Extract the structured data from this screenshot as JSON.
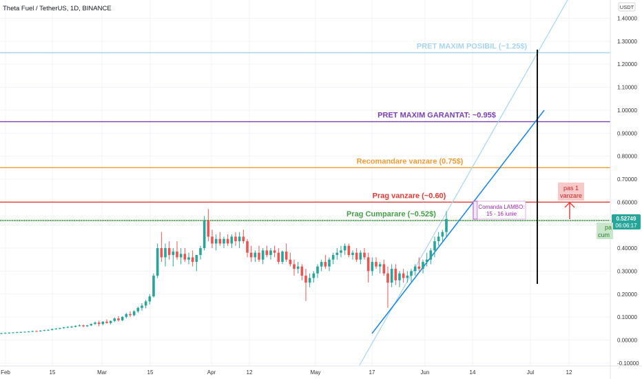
{
  "header": {
    "title": "Theta Fuel / TetherUS, 1D, BINANCE"
  },
  "axis": {
    "currency": "USDT"
  },
  "chart_data": {
    "type": "candlestick",
    "title": "Theta Fuel / TetherUS, 1D, BINANCE",
    "y_ticks": [
      -0.1,
      0.0,
      0.1,
      0.2,
      0.3,
      0.4,
      0.5,
      0.6,
      0.7,
      0.8,
      0.9,
      1.0,
      1.1,
      1.2,
      1.3,
      1.4
    ],
    "y_tick_labels": [
      "-0.10000",
      "0.00000",
      "0.10000",
      "0.20000",
      "0.30000",
      "0.40000",
      "0.50000",
      "0.60000",
      "0.70000",
      "0.80000",
      "0.90000",
      "1.00000",
      "1.10000",
      "1.20000",
      "1.30000",
      "1.40000"
    ],
    "ylim": [
      -0.1,
      1.4
    ],
    "x_labels": [
      "Feb",
      "15",
      "Mar",
      "15",
      "Apr",
      "12",
      "May",
      "17",
      "Jun",
      "14",
      "Jul",
      "12"
    ],
    "horizontal_levels": [
      {
        "label": "PRET MAXIM POSIBIL (~1.25$)",
        "value": 1.25,
        "color": "#a8d4f0"
      },
      {
        "label": "PRET MAXIM GARANTAT: ~0.95$",
        "value": 0.95,
        "color": "#7b3fb5"
      },
      {
        "label": "Recomandare vanzare (0.75$)",
        "value": 0.75,
        "color": "#f39c34"
      },
      {
        "label": "Prag vanzare (~0.60)",
        "value": 0.6,
        "color": "#e53935"
      },
      {
        "label": "Prag Cumparare (~0.52$)",
        "value": 0.52,
        "color": "#43a047"
      }
    ],
    "annotation_box": [
      "Comanda LAMBO:",
      "15 - 16 iunie"
    ],
    "sell_step": [
      "pas 1",
      "vanzare"
    ],
    "price_tag": {
      "price": "0.52749",
      "countdown": "06:06:17"
    },
    "buy_step_partial": [
      "pa",
      "cum"
    ],
    "candles": [
      [
        0.028,
        0.032,
        0.026,
        0.03
      ],
      [
        0.03,
        0.033,
        0.028,
        0.031
      ],
      [
        0.031,
        0.034,
        0.029,
        0.032
      ],
      [
        0.032,
        0.035,
        0.03,
        0.033
      ],
      [
        0.033,
        0.036,
        0.031,
        0.034
      ],
      [
        0.034,
        0.037,
        0.032,
        0.035
      ],
      [
        0.035,
        0.038,
        0.033,
        0.036
      ],
      [
        0.036,
        0.039,
        0.034,
        0.037
      ],
      [
        0.037,
        0.041,
        0.035,
        0.039
      ],
      [
        0.039,
        0.042,
        0.036,
        0.038
      ],
      [
        0.038,
        0.043,
        0.036,
        0.041
      ],
      [
        0.041,
        0.045,
        0.039,
        0.043
      ],
      [
        0.043,
        0.047,
        0.04,
        0.044
      ],
      [
        0.044,
        0.05,
        0.042,
        0.048
      ],
      [
        0.048,
        0.052,
        0.045,
        0.05
      ],
      [
        0.05,
        0.054,
        0.047,
        0.052
      ],
      [
        0.052,
        0.057,
        0.049,
        0.055
      ],
      [
        0.055,
        0.06,
        0.052,
        0.057
      ],
      [
        0.057,
        0.062,
        0.053,
        0.058
      ],
      [
        0.058,
        0.064,
        0.055,
        0.062
      ],
      [
        0.062,
        0.068,
        0.058,
        0.064
      ],
      [
        0.064,
        0.067,
        0.056,
        0.06
      ],
      [
        0.06,
        0.066,
        0.057,
        0.064
      ],
      [
        0.064,
        0.072,
        0.061,
        0.07
      ],
      [
        0.07,
        0.08,
        0.066,
        0.076
      ],
      [
        0.076,
        0.084,
        0.06,
        0.07
      ],
      [
        0.07,
        0.082,
        0.064,
        0.08
      ],
      [
        0.08,
        0.09,
        0.072,
        0.074
      ],
      [
        0.074,
        0.085,
        0.068,
        0.083
      ],
      [
        0.083,
        0.098,
        0.078,
        0.094
      ],
      [
        0.094,
        0.104,
        0.08,
        0.086
      ],
      [
        0.086,
        0.104,
        0.082,
        0.101
      ],
      [
        0.101,
        0.118,
        0.094,
        0.113
      ],
      [
        0.113,
        0.125,
        0.1,
        0.108
      ],
      [
        0.108,
        0.13,
        0.103,
        0.125
      ],
      [
        0.125,
        0.145,
        0.118,
        0.14
      ],
      [
        0.14,
        0.16,
        0.128,
        0.15
      ],
      [
        0.15,
        0.175,
        0.138,
        0.168
      ],
      [
        0.168,
        0.2,
        0.155,
        0.19
      ],
      [
        0.19,
        0.29,
        0.185,
        0.28
      ],
      [
        0.28,
        0.42,
        0.27,
        0.4
      ],
      [
        0.4,
        0.47,
        0.34,
        0.36
      ],
      [
        0.36,
        0.42,
        0.32,
        0.4
      ],
      [
        0.4,
        0.43,
        0.35,
        0.37
      ],
      [
        0.37,
        0.4,
        0.32,
        0.385
      ],
      [
        0.385,
        0.43,
        0.35,
        0.36
      ],
      [
        0.36,
        0.4,
        0.33,
        0.375
      ],
      [
        0.375,
        0.4,
        0.34,
        0.35
      ],
      [
        0.35,
        0.38,
        0.33,
        0.36
      ],
      [
        0.36,
        0.39,
        0.32,
        0.34
      ],
      [
        0.34,
        0.37,
        0.3,
        0.37
      ],
      [
        0.37,
        0.41,
        0.35,
        0.4
      ],
      [
        0.4,
        0.54,
        0.39,
        0.52
      ],
      [
        0.52,
        0.57,
        0.43,
        0.45
      ],
      [
        0.45,
        0.48,
        0.4,
        0.42
      ],
      [
        0.42,
        0.46,
        0.39,
        0.44
      ],
      [
        0.44,
        0.47,
        0.41,
        0.42
      ],
      [
        0.42,
        0.45,
        0.4,
        0.44
      ],
      [
        0.44,
        0.46,
        0.41,
        0.42
      ],
      [
        0.42,
        0.46,
        0.4,
        0.45
      ],
      [
        0.45,
        0.47,
        0.41,
        0.43
      ],
      [
        0.43,
        0.47,
        0.4,
        0.45
      ],
      [
        0.45,
        0.48,
        0.42,
        0.43
      ],
      [
        0.43,
        0.44,
        0.36,
        0.38
      ],
      [
        0.38,
        0.41,
        0.34,
        0.36
      ],
      [
        0.36,
        0.39,
        0.34,
        0.38
      ],
      [
        0.38,
        0.41,
        0.34,
        0.35
      ],
      [
        0.35,
        0.4,
        0.33,
        0.39
      ],
      [
        0.39,
        0.41,
        0.36,
        0.37
      ],
      [
        0.37,
        0.4,
        0.35,
        0.39
      ],
      [
        0.39,
        0.41,
        0.36,
        0.38
      ],
      [
        0.38,
        0.4,
        0.33,
        0.34
      ],
      [
        0.34,
        0.39,
        0.33,
        0.385
      ],
      [
        0.385,
        0.42,
        0.34,
        0.35
      ],
      [
        0.35,
        0.38,
        0.32,
        0.33
      ],
      [
        0.33,
        0.35,
        0.28,
        0.31
      ],
      [
        0.31,
        0.34,
        0.29,
        0.32
      ],
      [
        0.32,
        0.33,
        0.26,
        0.28
      ],
      [
        0.28,
        0.31,
        0.17,
        0.25
      ],
      [
        0.25,
        0.29,
        0.23,
        0.27
      ],
      [
        0.27,
        0.3,
        0.25,
        0.29
      ],
      [
        0.29,
        0.33,
        0.27,
        0.32
      ],
      [
        0.32,
        0.35,
        0.3,
        0.34
      ],
      [
        0.34,
        0.37,
        0.31,
        0.32
      ],
      [
        0.32,
        0.36,
        0.3,
        0.35
      ],
      [
        0.35,
        0.38,
        0.33,
        0.37
      ],
      [
        0.37,
        0.4,
        0.35,
        0.38
      ],
      [
        0.38,
        0.41,
        0.36,
        0.39
      ],
      [
        0.39,
        0.42,
        0.37,
        0.41
      ],
      [
        0.41,
        0.42,
        0.36,
        0.37
      ],
      [
        0.37,
        0.39,
        0.35,
        0.38
      ],
      [
        0.38,
        0.4,
        0.34,
        0.35
      ],
      [
        0.35,
        0.39,
        0.33,
        0.38
      ],
      [
        0.38,
        0.4,
        0.35,
        0.36
      ],
      [
        0.36,
        0.38,
        0.25,
        0.3
      ],
      [
        0.3,
        0.36,
        0.28,
        0.34
      ],
      [
        0.34,
        0.36,
        0.31,
        0.32
      ],
      [
        0.32,
        0.34,
        0.29,
        0.33
      ],
      [
        0.33,
        0.35,
        0.28,
        0.29
      ],
      [
        0.29,
        0.32,
        0.14,
        0.25
      ],
      [
        0.25,
        0.33,
        0.23,
        0.31
      ],
      [
        0.31,
        0.33,
        0.24,
        0.26
      ],
      [
        0.26,
        0.3,
        0.23,
        0.29
      ],
      [
        0.29,
        0.31,
        0.25,
        0.27
      ],
      [
        0.27,
        0.3,
        0.25,
        0.28
      ],
      [
        0.28,
        0.31,
        0.25,
        0.3
      ],
      [
        0.3,
        0.33,
        0.28,
        0.32
      ],
      [
        0.32,
        0.36,
        0.3,
        0.31
      ],
      [
        0.31,
        0.35,
        0.29,
        0.34
      ],
      [
        0.34,
        0.38,
        0.32,
        0.35
      ],
      [
        0.35,
        0.4,
        0.33,
        0.39
      ],
      [
        0.39,
        0.45,
        0.36,
        0.43
      ],
      [
        0.43,
        0.47,
        0.41,
        0.45
      ],
      [
        0.45,
        0.48,
        0.43,
        0.47
      ],
      [
        0.47,
        0.56,
        0.45,
        0.527
      ]
    ]
  }
}
